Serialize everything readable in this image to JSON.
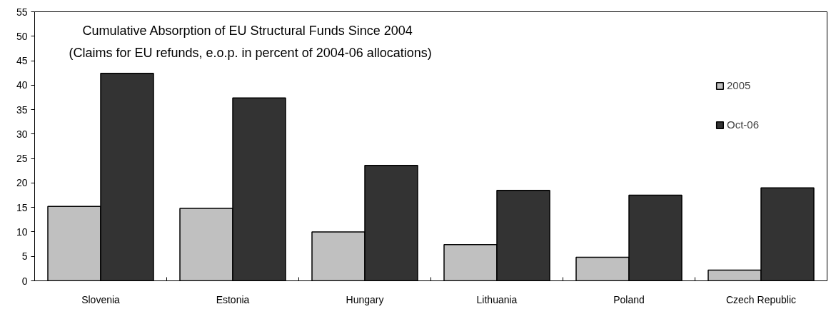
{
  "chart_data": {
    "type": "bar",
    "title": "Cumulative Absorption of EU Structural Funds Since 2004",
    "subtitle": "(Claims for EU refunds, e.o.p. in percent of  2004-06 allocations)",
    "categories": [
      "Slovenia",
      "Estonia",
      "Hungary",
      "Lithuania",
      "Poland",
      "Czech Republic"
    ],
    "series": [
      {
        "name": "2005",
        "color": "#c0c0c0",
        "values": [
          15.2,
          14.8,
          10.0,
          7.4,
          4.8,
          2.2
        ]
      },
      {
        "name": "Oct-06",
        "color": "#333333",
        "values": [
          42.4,
          37.4,
          23.6,
          18.5,
          17.5,
          19.0
        ]
      }
    ],
    "ylim": [
      0,
      55
    ],
    "yticks": [
      0,
      5,
      10,
      15,
      20,
      25,
      30,
      35,
      40,
      45,
      50,
      55
    ],
    "grid": false,
    "legend": "top right"
  }
}
